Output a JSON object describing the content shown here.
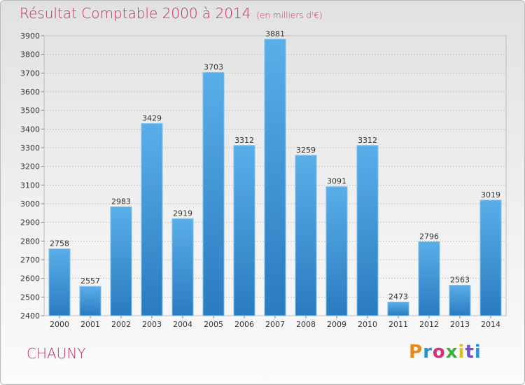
{
  "header": {
    "title": "Résultat Comptable 2000 à 2014",
    "subtitle": "(en milliers d'€)"
  },
  "footer": {
    "city": "CHAUNY",
    "logo": "Proxiti"
  },
  "colors": {
    "title": "#c03060",
    "bar_light": "#5aaee8",
    "bar_dark": "#2a7bbf"
  },
  "chart_data": {
    "type": "bar",
    "title": "Résultat Comptable 2000 à 2014",
    "subtitle": "(en milliers d'€)",
    "categories": [
      "2000",
      "2001",
      "2002",
      "2003",
      "2004",
      "2005",
      "2006",
      "2007",
      "2008",
      "2009",
      "2010",
      "2011",
      "2012",
      "2013",
      "2014"
    ],
    "values": [
      2758,
      2557,
      2983,
      3429,
      2919,
      3703,
      3312,
      3881,
      3259,
      3091,
      3312,
      2473,
      2796,
      2563,
      3019
    ],
    "ylim": [
      2400,
      3900
    ],
    "yticks": [
      2400,
      2500,
      2600,
      2700,
      2800,
      2900,
      3000,
      3100,
      3200,
      3300,
      3400,
      3500,
      3600,
      3700,
      3800,
      3900
    ],
    "xlabel": "",
    "ylabel": "",
    "grid": true
  }
}
